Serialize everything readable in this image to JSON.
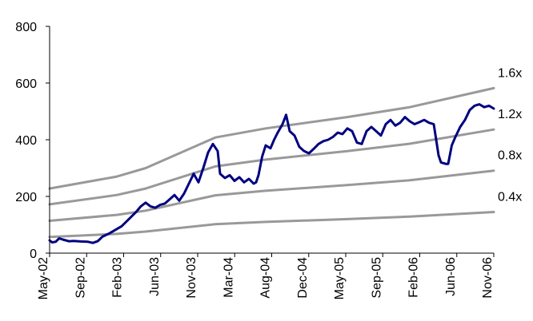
{
  "chart_data": {
    "type": "line",
    "title": "",
    "xlabel": "",
    "ylabel": "",
    "ylim": [
      0,
      800
    ],
    "yticks": [
      "0",
      "200",
      "400",
      "600",
      "800"
    ],
    "x_categories": [
      "May-02",
      "Sep-02",
      "Feb-03",
      "Jun-03",
      "Nov-03",
      "Mar-04",
      "Aug-04",
      "Dec-04",
      "May-05",
      "Sep-05",
      "Feb-06",
      "Jun-06",
      "Nov-06"
    ],
    "grid": false,
    "legend": "none",
    "series": [
      {
        "role": "price",
        "color": "#000080",
        "points": [
          [
            0,
            45
          ],
          [
            0.1,
            38
          ],
          [
            0.25,
            40
          ],
          [
            0.4,
            52
          ],
          [
            0.55,
            48
          ],
          [
            0.8,
            42
          ],
          [
            1.0,
            43
          ],
          [
            1.3,
            41
          ],
          [
            1.6,
            40
          ],
          [
            1.8,
            36
          ],
          [
            2.0,
            42
          ],
          [
            2.2,
            58
          ],
          [
            2.5,
            70
          ],
          [
            2.8,
            85
          ],
          [
            3.0,
            95
          ],
          [
            3.3,
            120
          ],
          [
            3.6,
            145
          ],
          [
            3.8,
            165
          ],
          [
            4.0,
            178
          ],
          [
            4.2,
            165
          ],
          [
            4.4,
            160
          ],
          [
            4.6,
            170
          ],
          [
            4.8,
            175
          ],
          [
            5.0,
            190
          ],
          [
            5.2,
            205
          ],
          [
            5.4,
            185
          ],
          [
            5.6,
            210
          ],
          [
            5.8,
            245
          ],
          [
            6.0,
            280
          ],
          [
            6.2,
            250
          ],
          [
            6.4,
            300
          ],
          [
            6.6,
            355
          ],
          [
            6.8,
            385
          ],
          [
            7.0,
            360
          ],
          [
            7.1,
            280
          ],
          [
            7.3,
            265
          ],
          [
            7.5,
            275
          ],
          [
            7.7,
            255
          ],
          [
            7.9,
            268
          ],
          [
            8.1,
            250
          ],
          [
            8.3,
            262
          ],
          [
            8.5,
            245
          ],
          [
            8.6,
            250
          ],
          [
            8.7,
            275
          ],
          [
            8.85,
            340
          ],
          [
            9.0,
            380
          ],
          [
            9.2,
            370
          ],
          [
            9.35,
            400
          ],
          [
            9.5,
            425
          ],
          [
            9.7,
            455
          ],
          [
            9.85,
            488
          ],
          [
            10.0,
            430
          ],
          [
            10.2,
            415
          ],
          [
            10.4,
            375
          ],
          [
            10.6,
            360
          ],
          [
            10.8,
            352
          ],
          [
            11.0,
            368
          ],
          [
            11.2,
            385
          ],
          [
            11.4,
            395
          ],
          [
            11.6,
            400
          ],
          [
            11.8,
            410
          ],
          [
            12.0,
            425
          ],
          [
            12.2,
            420
          ],
          [
            12.4,
            440
          ],
          [
            12.6,
            430
          ],
          [
            12.8,
            390
          ],
          [
            13.0,
            385
          ],
          [
            13.2,
            430
          ],
          [
            13.4,
            445
          ],
          [
            13.6,
            430
          ],
          [
            13.8,
            415
          ],
          [
            14.0,
            455
          ],
          [
            14.2,
            470
          ],
          [
            14.4,
            450
          ],
          [
            14.6,
            460
          ],
          [
            14.8,
            480
          ],
          [
            15.0,
            465
          ],
          [
            15.2,
            455
          ],
          [
            15.4,
            462
          ],
          [
            15.6,
            470
          ],
          [
            15.8,
            460
          ],
          [
            16.0,
            455
          ],
          [
            16.1,
            400
          ],
          [
            16.2,
            345
          ],
          [
            16.3,
            320
          ],
          [
            16.5,
            315
          ],
          [
            16.6,
            315
          ],
          [
            16.75,
            380
          ],
          [
            16.9,
            410
          ],
          [
            17.1,
            445
          ],
          [
            17.3,
            470
          ],
          [
            17.5,
            505
          ],
          [
            17.7,
            520
          ],
          [
            17.9,
            525
          ],
          [
            18.1,
            515
          ],
          [
            18.3,
            520
          ],
          [
            18.5,
            510
          ]
        ]
      },
      {
        "role": "band",
        "label": "1.6x",
        "color": "#999999",
        "points": [
          [
            0,
            228
          ],
          [
            2.8,
            270
          ],
          [
            4.0,
            300
          ],
          [
            6.9,
            408
          ],
          [
            9.0,
            440
          ],
          [
            12.4,
            480
          ],
          [
            15.0,
            515
          ],
          [
            18.5,
            582
          ]
        ]
      },
      {
        "role": "band",
        "label": "1.2x",
        "color": "#999999",
        "points": [
          [
            0,
            172
          ],
          [
            2.8,
            205
          ],
          [
            4.0,
            228
          ],
          [
            6.9,
            306
          ],
          [
            9.0,
            330
          ],
          [
            12.4,
            360
          ],
          [
            15.0,
            386
          ],
          [
            18.5,
            436
          ]
        ]
      },
      {
        "role": "band",
        "label": "0.8x",
        "color": "#999999",
        "points": [
          [
            0,
            114
          ],
          [
            2.8,
            135
          ],
          [
            4.0,
            150
          ],
          [
            6.9,
            204
          ],
          [
            9.0,
            220
          ],
          [
            12.4,
            240
          ],
          [
            15.0,
            257
          ],
          [
            18.5,
            291
          ]
        ]
      },
      {
        "role": "band",
        "label": "0.4x",
        "color": "#999999",
        "points": [
          [
            0,
            57
          ],
          [
            2.8,
            68
          ],
          [
            4.0,
            76
          ],
          [
            6.9,
            102
          ],
          [
            9.0,
            110
          ],
          [
            12.4,
            120
          ],
          [
            15.0,
            129
          ],
          [
            18.5,
            145
          ]
        ]
      }
    ]
  }
}
